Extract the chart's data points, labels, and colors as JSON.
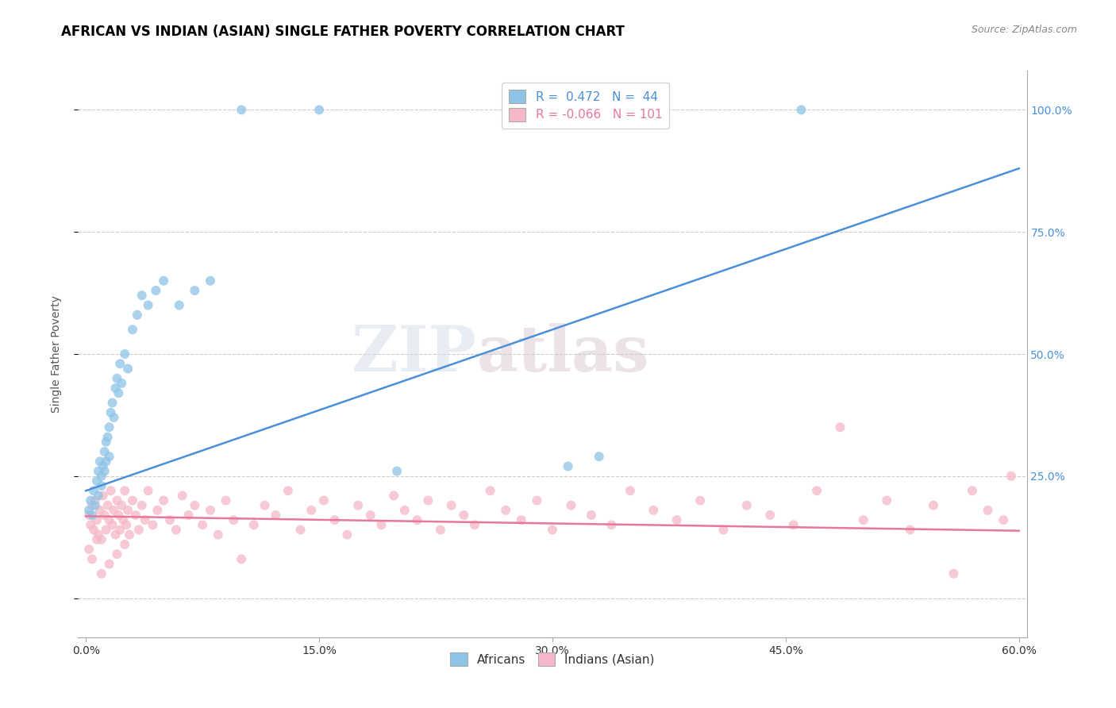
{
  "title": "AFRICAN VS INDIAN (ASIAN) SINGLE FATHER POVERTY CORRELATION CHART",
  "source": "Source: ZipAtlas.com",
  "ylabel": "Single Father Poverty",
  "yticks": [
    0.0,
    0.25,
    0.5,
    0.75,
    1.0
  ],
  "xticks": [
    0.0,
    0.15,
    0.3,
    0.45,
    0.6
  ],
  "xlim": [
    -0.005,
    0.605
  ],
  "ylim": [
    -0.08,
    1.08
  ],
  "african_R": 0.472,
  "african_N": 44,
  "indian_R": -0.066,
  "indian_N": 101,
  "blue_color": "#8ec4e8",
  "pink_color": "#f5b8c8",
  "blue_line_color": "#4a90d9",
  "pink_line_color": "#e8789a",
  "watermark_zip": "ZIP",
  "watermark_atlas": "atlas",
  "blue_intercept": 0.22,
  "blue_slope": 1.1,
  "pink_intercept": 0.168,
  "pink_slope": -0.05,
  "africans_x": [
    0.002,
    0.003,
    0.004,
    0.005,
    0.006,
    0.007,
    0.008,
    0.008,
    0.009,
    0.01,
    0.01,
    0.011,
    0.012,
    0.012,
    0.013,
    0.013,
    0.014,
    0.015,
    0.015,
    0.016,
    0.017,
    0.018,
    0.019,
    0.02,
    0.021,
    0.022,
    0.023,
    0.025,
    0.027,
    0.03,
    0.033,
    0.036,
    0.04,
    0.045,
    0.05,
    0.06,
    0.07,
    0.08,
    0.1,
    0.15,
    0.2,
    0.31,
    0.33,
    0.46
  ],
  "africans_y": [
    0.18,
    0.2,
    0.17,
    0.22,
    0.19,
    0.24,
    0.26,
    0.21,
    0.28,
    0.23,
    0.25,
    0.27,
    0.3,
    0.26,
    0.32,
    0.28,
    0.33,
    0.35,
    0.29,
    0.38,
    0.4,
    0.37,
    0.43,
    0.45,
    0.42,
    0.48,
    0.44,
    0.5,
    0.47,
    0.55,
    0.58,
    0.62,
    0.6,
    0.63,
    0.65,
    0.6,
    0.63,
    0.65,
    1.0,
    1.0,
    0.26,
    0.27,
    0.29,
    1.0
  ],
  "indians_x": [
    0.002,
    0.003,
    0.004,
    0.005,
    0.006,
    0.007,
    0.008,
    0.009,
    0.01,
    0.011,
    0.012,
    0.013,
    0.014,
    0.015,
    0.016,
    0.017,
    0.018,
    0.019,
    0.02,
    0.021,
    0.022,
    0.023,
    0.024,
    0.025,
    0.026,
    0.027,
    0.028,
    0.03,
    0.032,
    0.034,
    0.036,
    0.038,
    0.04,
    0.043,
    0.046,
    0.05,
    0.054,
    0.058,
    0.062,
    0.066,
    0.07,
    0.075,
    0.08,
    0.085,
    0.09,
    0.095,
    0.1,
    0.108,
    0.115,
    0.122,
    0.13,
    0.138,
    0.145,
    0.153,
    0.16,
    0.168,
    0.175,
    0.183,
    0.19,
    0.198,
    0.205,
    0.213,
    0.22,
    0.228,
    0.235,
    0.243,
    0.25,
    0.26,
    0.27,
    0.28,
    0.29,
    0.3,
    0.312,
    0.325,
    0.338,
    0.35,
    0.365,
    0.38,
    0.395,
    0.41,
    0.425,
    0.44,
    0.455,
    0.47,
    0.485,
    0.5,
    0.515,
    0.53,
    0.545,
    0.558,
    0.57,
    0.58,
    0.59,
    0.595,
    0.002,
    0.004,
    0.007,
    0.01,
    0.015,
    0.02,
    0.025
  ],
  "indians_y": [
    0.17,
    0.15,
    0.19,
    0.14,
    0.2,
    0.16,
    0.13,
    0.18,
    0.12,
    0.21,
    0.17,
    0.14,
    0.19,
    0.16,
    0.22,
    0.15,
    0.18,
    0.13,
    0.2,
    0.17,
    0.14,
    0.19,
    0.16,
    0.22,
    0.15,
    0.18,
    0.13,
    0.2,
    0.17,
    0.14,
    0.19,
    0.16,
    0.22,
    0.15,
    0.18,
    0.2,
    0.16,
    0.14,
    0.21,
    0.17,
    0.19,
    0.15,
    0.18,
    0.13,
    0.2,
    0.16,
    0.08,
    0.15,
    0.19,
    0.17,
    0.22,
    0.14,
    0.18,
    0.2,
    0.16,
    0.13,
    0.19,
    0.17,
    0.15,
    0.21,
    0.18,
    0.16,
    0.2,
    0.14,
    0.19,
    0.17,
    0.15,
    0.22,
    0.18,
    0.16,
    0.2,
    0.14,
    0.19,
    0.17,
    0.15,
    0.22,
    0.18,
    0.16,
    0.2,
    0.14,
    0.19,
    0.17,
    0.15,
    0.22,
    0.35,
    0.16,
    0.2,
    0.14,
    0.19,
    0.05,
    0.22,
    0.18,
    0.16,
    0.25,
    0.1,
    0.08,
    0.12,
    0.05,
    0.07,
    0.09,
    0.11
  ]
}
